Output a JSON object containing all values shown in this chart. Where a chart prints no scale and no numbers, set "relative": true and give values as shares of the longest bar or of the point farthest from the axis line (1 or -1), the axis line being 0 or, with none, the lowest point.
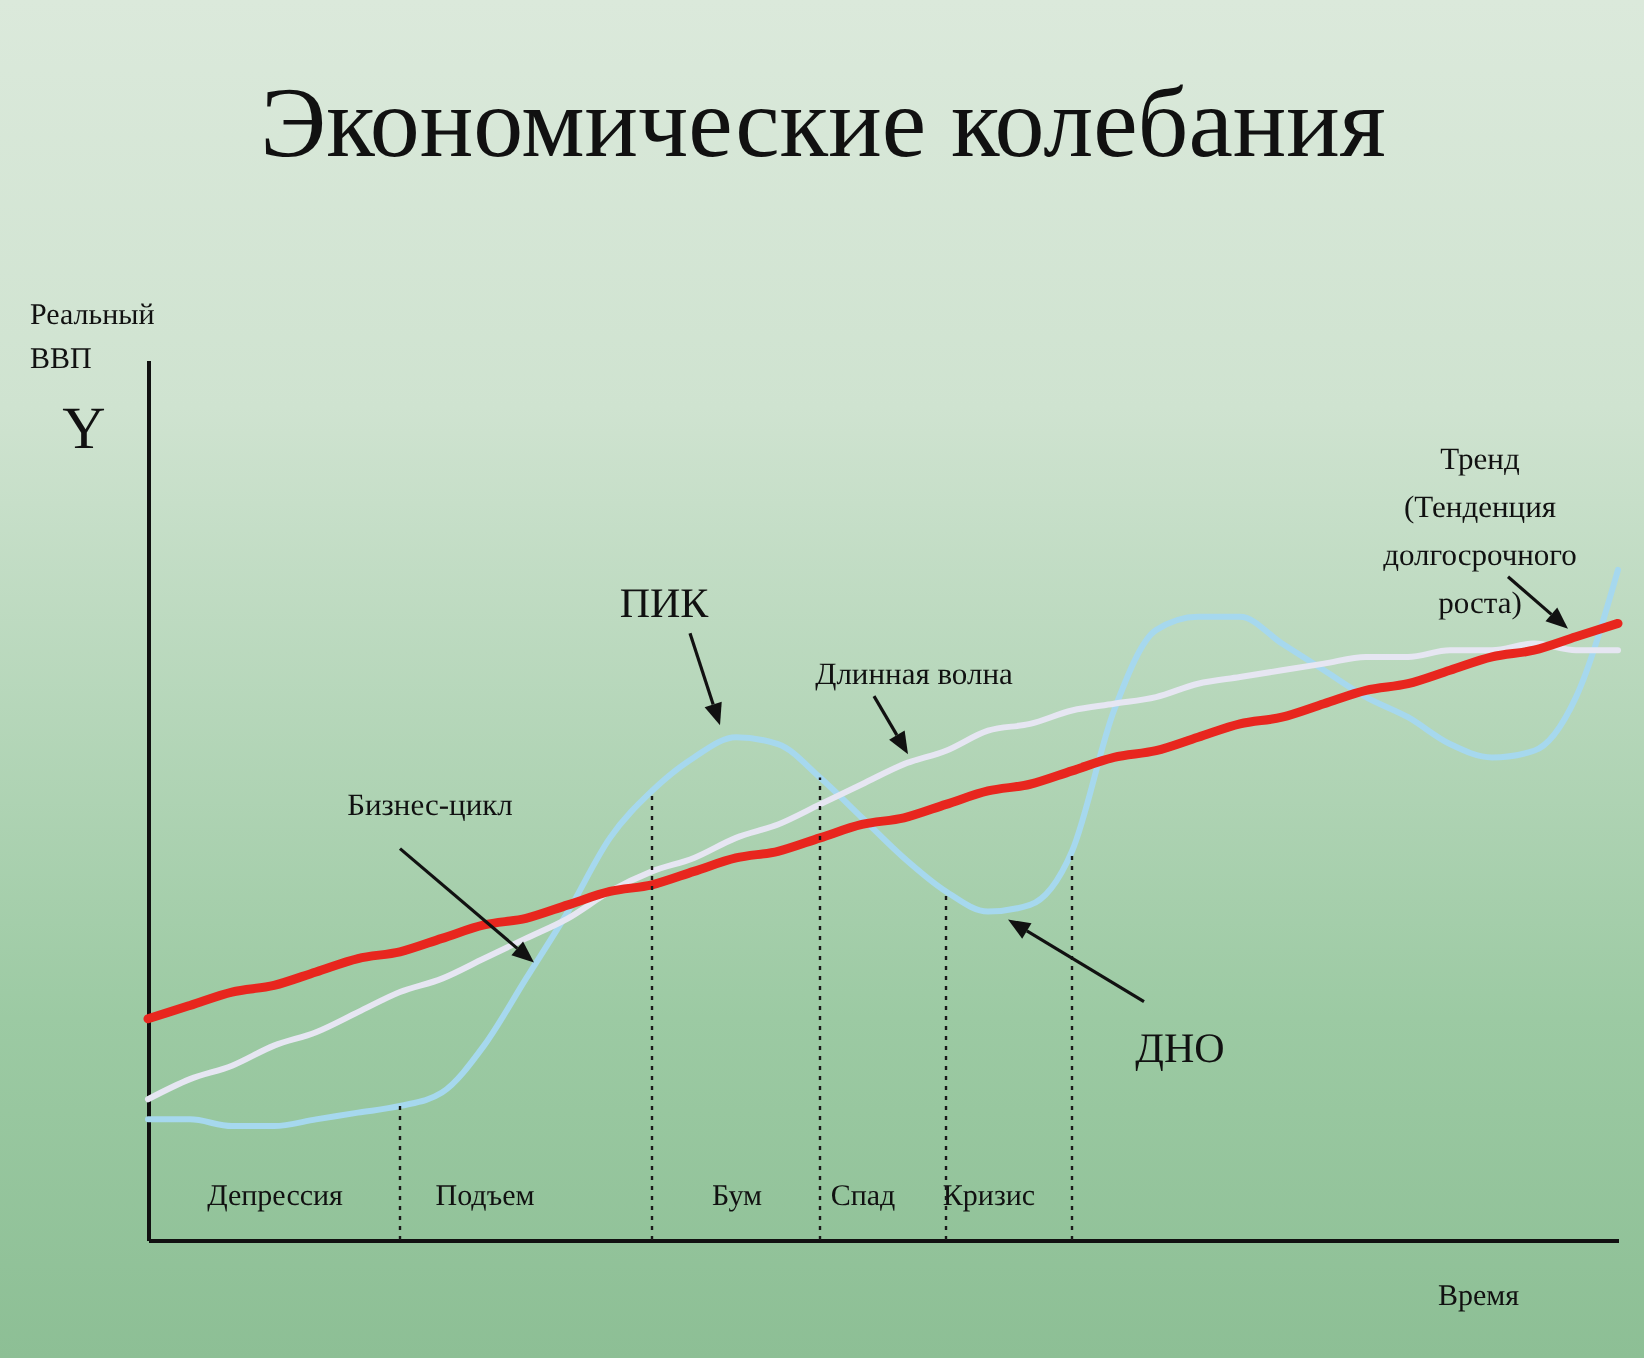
{
  "chart_data": {
    "type": "line",
    "title": "Экономические колебания",
    "xlabel": "Время",
    "relative": true,
    "grid": false,
    "marker": "none",
    "categories": [
      null,
      null,
      null,
      "Депрессия",
      null,
      null,
      null,
      null,
      "Подъем",
      null,
      null,
      null,
      null,
      null,
      "Бум",
      null,
      null,
      "Спад",
      null,
      null,
      "Кризис",
      null,
      null,
      null,
      null,
      null,
      null,
      null,
      null,
      null,
      null,
      null,
      null,
      null,
      null,
      null
    ],
    "series": [
      {
        "name": "Бизнес-цикл",
        "color": "#a6d8ee",
        "values": [
          0.18,
          0.18,
          0.17,
          0.17,
          0.18,
          0.19,
          0.2,
          0.22,
          0.29,
          0.39,
          0.49,
          0.6,
          0.67,
          0.72,
          0.75,
          0.74,
          0.69,
          0.63,
          0.57,
          0.52,
          0.49,
          0.5,
          0.58,
          0.79,
          0.91,
          0.93,
          0.93,
          0.89,
          0.85,
          0.81,
          0.78,
          0.74,
          0.72,
          0.73,
          0.81,
          1
        ]
      },
      {
        "name": "Длинная волна",
        "color": "#e6e6f2",
        "values": [
          0.21,
          0.24,
          0.26,
          0.29,
          0.31,
          0.34,
          0.37,
          0.39,
          0.42,
          0.45,
          0.48,
          0.52,
          0.55,
          0.57,
          0.6,
          0.62,
          0.65,
          0.68,
          0.71,
          0.73,
          0.76,
          0.77,
          0.79,
          0.8,
          0.81,
          0.83,
          0.84,
          0.85,
          0.86,
          0.87,
          0.87,
          0.88,
          0.88,
          0.89,
          0.88,
          0.88
        ]
      },
      {
        "name": "Тренд (Тенденция долгосрочного роста)",
        "color": "#e8261e",
        "values": [
          0.33,
          0.35,
          0.37,
          0.38,
          0.4,
          0.42,
          0.43,
          0.45,
          0.47,
          0.48,
          0.5,
          0.52,
          0.53,
          0.55,
          0.57,
          0.58,
          0.6,
          0.62,
          0.63,
          0.65,
          0.67,
          0.68,
          0.7,
          0.72,
          0.73,
          0.75,
          0.77,
          0.78,
          0.8,
          0.82,
          0.83,
          0.85,
          0.87,
          0.88,
          0.9,
          0.92
        ]
      }
    ],
    "annotations": [
      "Реальный ВВП",
      "Y",
      "ПИК",
      "ДНО"
    ]
  }
}
